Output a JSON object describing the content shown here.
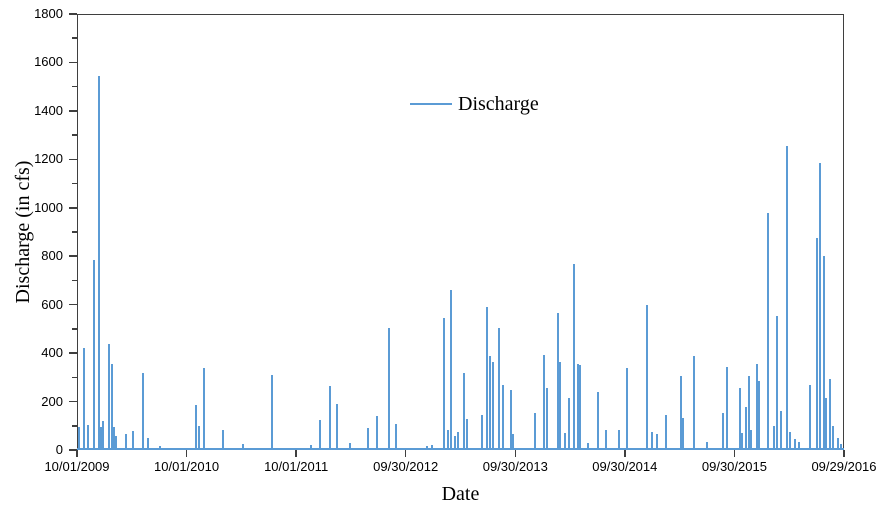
{
  "legend": {
    "label": "Discharge"
  },
  "axes": {
    "x_title": "Date",
    "y_title": "Discharge (in cfs)"
  },
  "chart_data": {
    "type": "bar",
    "title": "",
    "xlabel": "Date",
    "ylabel": "Discharge (in cfs)",
    "legend_position": "top-center",
    "grid": false,
    "series_name": "Discharge",
    "series_color": "#5B9BD5",
    "axis_color": "#3f3f3f",
    "ylim": [
      0,
      1800
    ],
    "y_major_tick_interval": 200,
    "y_minor_tick_interval": 100,
    "x_range": [
      "2009-10-01",
      "2016-09-29"
    ],
    "x_ticks": [
      {
        "label": "10/01/2009",
        "date": "2009-10-01"
      },
      {
        "label": "10/01/2010",
        "date": "2010-10-01"
      },
      {
        "label": "10/01/2011",
        "date": "2011-10-01"
      },
      {
        "label": "09/30/2012",
        "date": "2012-09-30"
      },
      {
        "label": "09/30/2013",
        "date": "2013-09-30"
      },
      {
        "label": "09/30/2014",
        "date": "2014-09-30"
      },
      {
        "label": "09/30/2015",
        "date": "2015-09-30"
      },
      {
        "label": "09/29/2016",
        "date": "2016-09-29"
      }
    ],
    "points": [
      [
        "2009-10-08",
        90
      ],
      [
        "2009-10-23",
        415
      ],
      [
        "2009-11-05",
        100
      ],
      [
        "2009-11-25",
        780
      ],
      [
        "2009-12-12",
        1540
      ],
      [
        "2009-12-20",
        90
      ],
      [
        "2009-12-26",
        115
      ],
      [
        "2010-01-15",
        435
      ],
      [
        "2010-01-24",
        350
      ],
      [
        "2010-01-31",
        90
      ],
      [
        "2010-02-09",
        55
      ],
      [
        "2010-03-14",
        60
      ],
      [
        "2010-04-06",
        75
      ],
      [
        "2010-05-09",
        315
      ],
      [
        "2010-05-26",
        47
      ],
      [
        "2010-07-04",
        12
      ],
      [
        "2010-10-31",
        180
      ],
      [
        "2010-11-10",
        95
      ],
      [
        "2010-11-28",
        335
      ],
      [
        "2011-02-01",
        80
      ],
      [
        "2011-04-06",
        20
      ],
      [
        "2011-07-13",
        305
      ],
      [
        "2011-11-21",
        15
      ],
      [
        "2011-12-21",
        120
      ],
      [
        "2012-01-22",
        260
      ],
      [
        "2012-02-14",
        185
      ],
      [
        "2012-03-28",
        25
      ],
      [
        "2012-05-29",
        85
      ],
      [
        "2012-06-26",
        135
      ],
      [
        "2012-08-05",
        500
      ],
      [
        "2012-08-30",
        105
      ],
      [
        "2012-12-10",
        12
      ],
      [
        "2012-12-27",
        15
      ],
      [
        "2013-02-06",
        540
      ],
      [
        "2013-02-18",
        80
      ],
      [
        "2013-03-01",
        655
      ],
      [
        "2013-03-13",
        55
      ],
      [
        "2013-03-23",
        70
      ],
      [
        "2013-04-13",
        315
      ],
      [
        "2013-04-23",
        125
      ],
      [
        "2013-06-12",
        140
      ],
      [
        "2013-06-29",
        585
      ],
      [
        "2013-07-09",
        385
      ],
      [
        "2013-07-19",
        360
      ],
      [
        "2013-08-06",
        500
      ],
      [
        "2013-08-19",
        265
      ],
      [
        "2013-09-15",
        245
      ],
      [
        "2013-09-24",
        60
      ],
      [
        "2013-12-06",
        150
      ],
      [
        "2014-01-02",
        390
      ],
      [
        "2014-01-15",
        250
      ],
      [
        "2014-02-18",
        560
      ],
      [
        "2014-02-26",
        360
      ],
      [
        "2014-03-15",
        65
      ],
      [
        "2014-03-27",
        210
      ],
      [
        "2014-04-12",
        765
      ],
      [
        "2014-04-26",
        350
      ],
      [
        "2014-05-05",
        345
      ],
      [
        "2014-05-29",
        25
      ],
      [
        "2014-07-01",
        235
      ],
      [
        "2014-07-28",
        80
      ],
      [
        "2014-09-11",
        80
      ],
      [
        "2014-10-08",
        335
      ],
      [
        "2014-12-14",
        595
      ],
      [
        "2014-12-29",
        70
      ],
      [
        "2015-01-16",
        60
      ],
      [
        "2015-02-15",
        140
      ],
      [
        "2015-04-05",
        300
      ],
      [
        "2015-04-11",
        130
      ],
      [
        "2015-05-18",
        385
      ],
      [
        "2015-06-29",
        30
      ],
      [
        "2015-08-23",
        150
      ],
      [
        "2015-09-05",
        340
      ],
      [
        "2015-10-19",
        250
      ],
      [
        "2015-10-26",
        65
      ],
      [
        "2015-11-08",
        175
      ],
      [
        "2015-11-17",
        300
      ],
      [
        "2015-11-23",
        80
      ],
      [
        "2015-12-13",
        350
      ],
      [
        "2015-12-20",
        280
      ],
      [
        "2016-01-19",
        975
      ],
      [
        "2016-02-10",
        95
      ],
      [
        "2016-02-18",
        550
      ],
      [
        "2016-03-04",
        155
      ],
      [
        "2016-03-24",
        1250
      ],
      [
        "2016-04-03",
        70
      ],
      [
        "2016-04-20",
        40
      ],
      [
        "2016-05-03",
        30
      ],
      [
        "2016-06-09",
        265
      ],
      [
        "2016-07-01",
        870
      ],
      [
        "2016-07-12",
        1180
      ],
      [
        "2016-07-24",
        795
      ],
      [
        "2016-08-01",
        210
      ],
      [
        "2016-08-15",
        290
      ],
      [
        "2016-08-23",
        95
      ],
      [
        "2016-09-10",
        45
      ],
      [
        "2016-09-20",
        20
      ]
    ]
  }
}
